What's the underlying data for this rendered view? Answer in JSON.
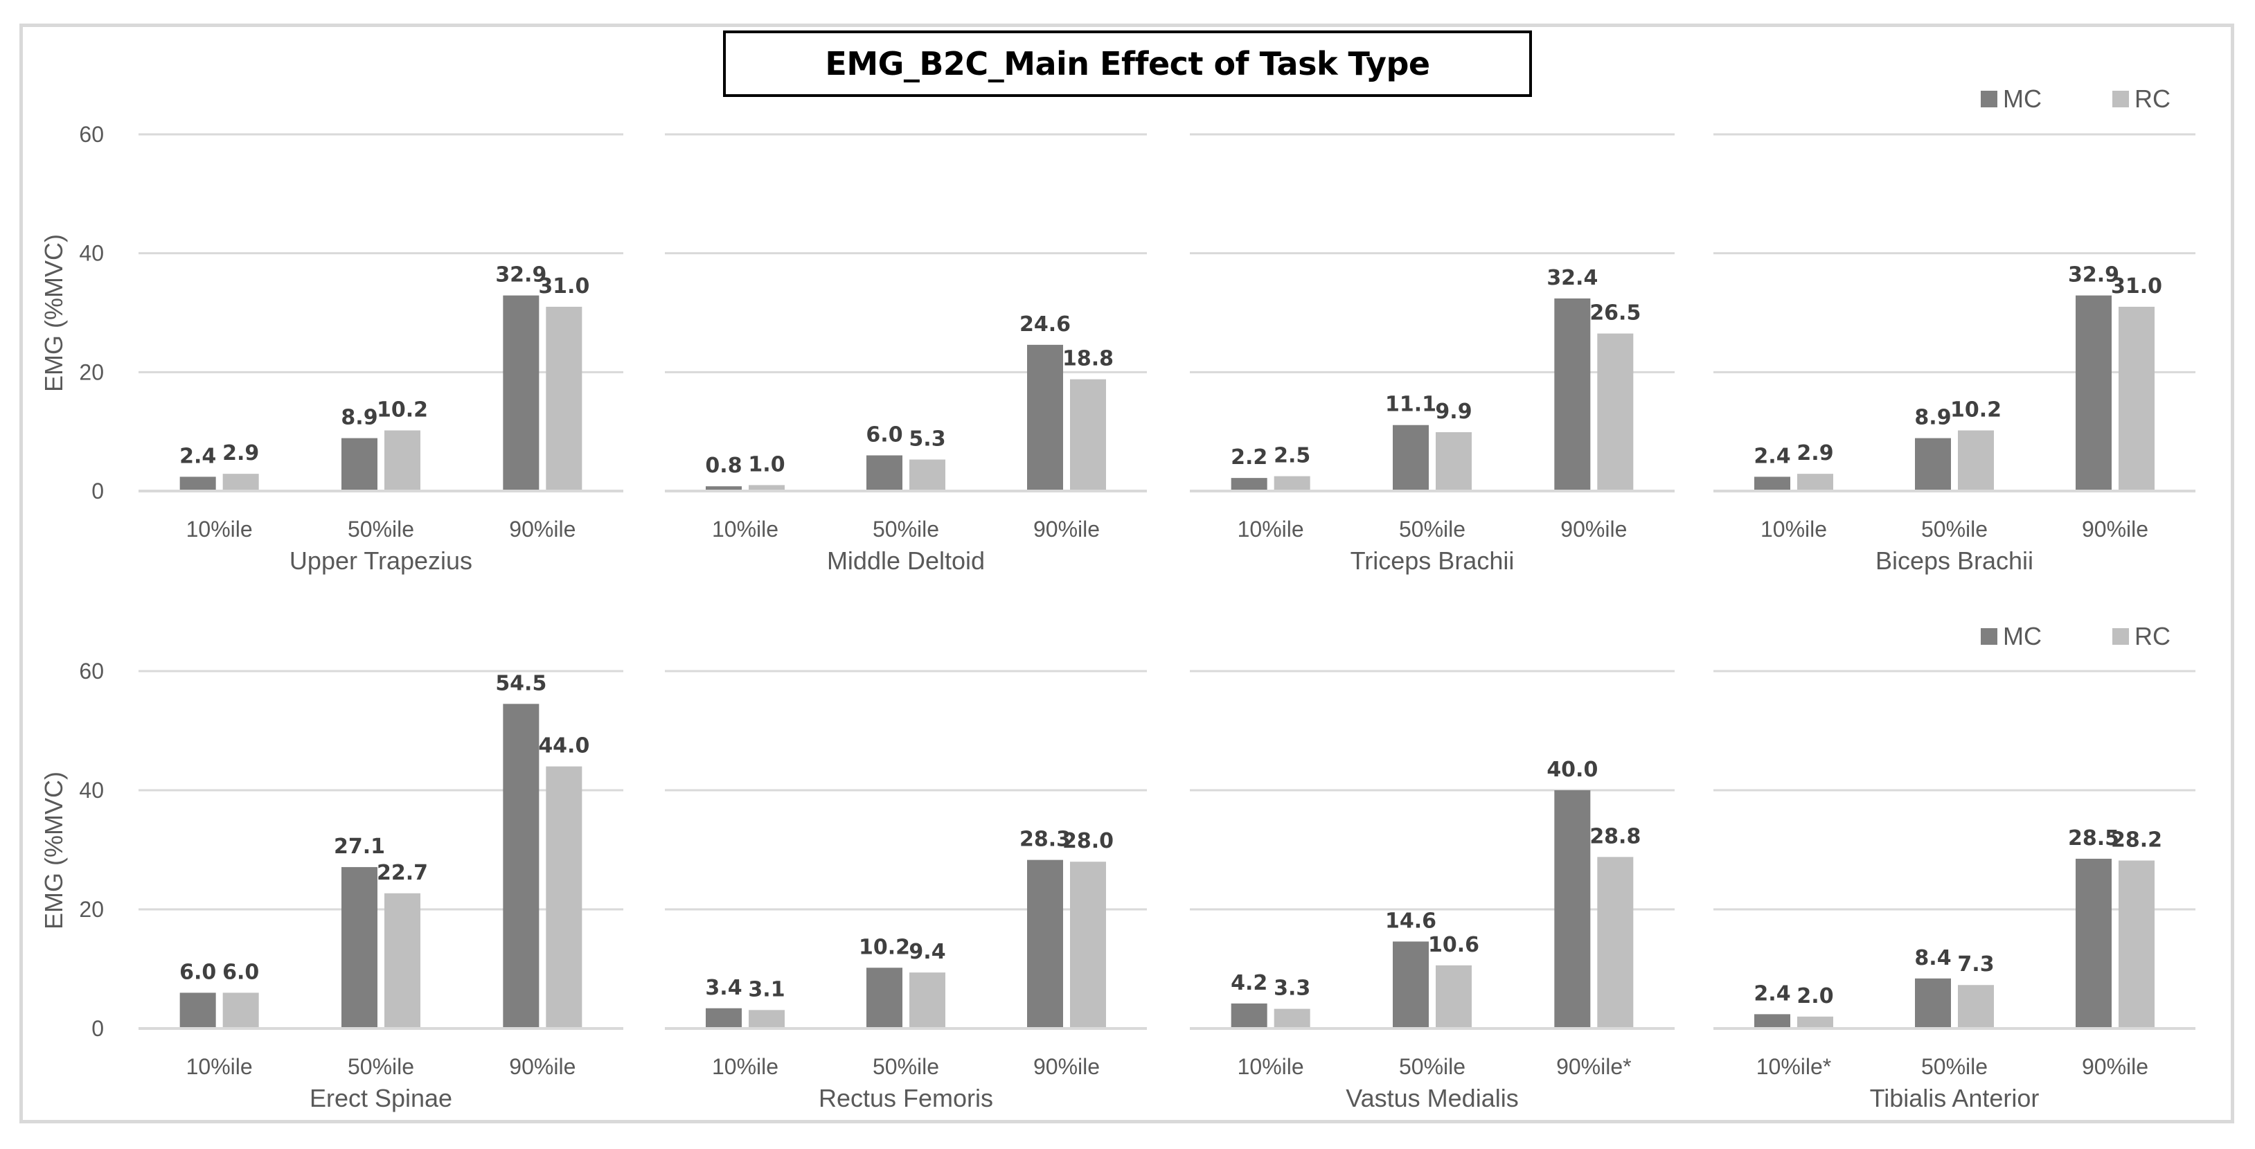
{
  "chart_data": {
    "type": "bar",
    "title": "EMG_B2C_Main Effect of Task Type",
    "ylabel": "EMG (%MVC)",
    "ylim": [
      0,
      60
    ],
    "yticks": [
      0,
      20,
      40,
      60
    ],
    "legend": [
      "MC",
      "RC"
    ],
    "colors": {
      "MC": "#7f7f7f",
      "RC": "#bfbfbf"
    },
    "panels": [
      {
        "name": "Upper Trapezius",
        "categories": [
          "10%ile",
          "50%ile",
          "90%ile"
        ],
        "series": [
          {
            "name": "MC",
            "values": [
              2.4,
              8.9,
              32.9
            ]
          },
          {
            "name": "RC",
            "values": [
              2.9,
              10.2,
              31.0
            ]
          }
        ]
      },
      {
        "name": "Middle Deltoid",
        "categories": [
          "10%ile",
          "50%ile",
          "90%ile"
        ],
        "series": [
          {
            "name": "MC",
            "values": [
              0.8,
              6.0,
              24.6
            ]
          },
          {
            "name": "RC",
            "values": [
              1.0,
              5.3,
              18.8
            ]
          }
        ]
      },
      {
        "name": "Triceps Brachii",
        "categories": [
          "10%ile",
          "50%ile",
          "90%ile"
        ],
        "series": [
          {
            "name": "MC",
            "values": [
              2.2,
              11.1,
              32.4
            ]
          },
          {
            "name": "RC",
            "values": [
              2.5,
              9.9,
              26.5
            ]
          }
        ]
      },
      {
        "name": "Biceps Brachii",
        "categories": [
          "10%ile",
          "50%ile",
          "90%ile"
        ],
        "series": [
          {
            "name": "MC",
            "values": [
              2.4,
              8.9,
              32.9
            ]
          },
          {
            "name": "RC",
            "values": [
              2.9,
              10.2,
              31.0
            ]
          }
        ]
      },
      {
        "name": "Erect Spinae",
        "categories": [
          "10%ile",
          "50%ile",
          "90%ile"
        ],
        "series": [
          {
            "name": "MC",
            "values": [
              6.0,
              27.1,
              54.5
            ]
          },
          {
            "name": "RC",
            "values": [
              6.0,
              22.7,
              44.0
            ]
          }
        ]
      },
      {
        "name": "Rectus Femoris",
        "categories": [
          "10%ile",
          "50%ile",
          "90%ile"
        ],
        "series": [
          {
            "name": "MC",
            "values": [
              3.4,
              10.2,
              28.3
            ]
          },
          {
            "name": "RC",
            "values": [
              3.1,
              9.4,
              28.0
            ]
          }
        ]
      },
      {
        "name": "Vastus Medialis",
        "categories": [
          "10%ile",
          "50%ile",
          "90%ile*"
        ],
        "series": [
          {
            "name": "MC",
            "values": [
              4.2,
              14.6,
              40.0
            ]
          },
          {
            "name": "RC",
            "values": [
              3.3,
              10.6,
              28.8
            ]
          }
        ]
      },
      {
        "name": "Tibialis Anterior",
        "categories": [
          "10%ile*",
          "50%ile",
          "90%ile"
        ],
        "series": [
          {
            "name": "MC",
            "values": [
              2.4,
              8.4,
              28.5
            ]
          },
          {
            "name": "RC",
            "values": [
              2.0,
              7.3,
              28.2
            ]
          }
        ]
      }
    ]
  }
}
